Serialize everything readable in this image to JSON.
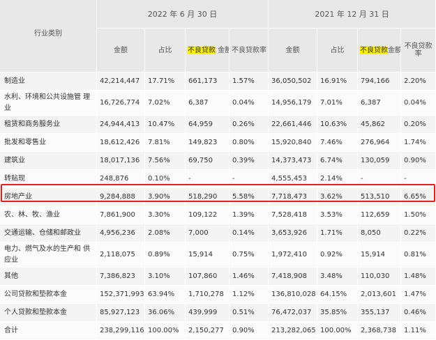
{
  "header": {
    "category_label": "行业类别",
    "period_2022": "2022 年 6 月 30 日",
    "period_2021": "2021 年 12 月 31 日",
    "amount": "金额",
    "share": "占比",
    "npl_hl": "不良贷款",
    "npl_rest": "金额",
    "npl_ratio": "不良贷款率",
    "npl_hl_2021": "不良贷款",
    "npl_rest_2021": "金额",
    "npl_ratio_2021": "不良贷款率"
  },
  "rows": [
    {
      "cat": "制造业",
      "a1": "42,214,447",
      "p1": "17.71%",
      "n1": "661,173",
      "r1": "1.57%",
      "a2": "36,050,502",
      "p2": "16.91%",
      "n2": "794,166",
      "r2": "2.20%"
    },
    {
      "cat": "水利、环境和公共设施管 理业",
      "a1": "16,726,774",
      "p1": "7.02%",
      "n1": "6,387",
      "r1": "0.04%",
      "a2": "14,956,179",
      "p2": "7.01%",
      "n2": "6,387",
      "r2": "0.04%"
    },
    {
      "cat": "租赁和商务服务业",
      "a1": "24,944,413",
      "p1": "10.47%",
      "n1": "64,959",
      "r1": "0.26%",
      "a2": "22,661,446",
      "p2": "10.63%",
      "n2": "45,862",
      "r2": "0.20%"
    },
    {
      "cat": "批发和零售业",
      "a1": "18,612,426",
      "p1": "7.81%",
      "n1": "149,823",
      "r1": "0.80%",
      "a2": "15,920,840",
      "p2": "7.46%",
      "n2": "276,964",
      "r2": "1.74%"
    },
    {
      "cat": "建筑业",
      "a1": "18,017,136",
      "p1": "7.56%",
      "n1": "69,750",
      "r1": "0.39%",
      "a2": "14,373,473",
      "p2": "6.74%",
      "n2": "130,059",
      "r2": "0.90%"
    },
    {
      "cat": "转贴现",
      "a1": "248,876",
      "p1": "0.10%",
      "n1": "-",
      "r1": "-",
      "a2": "4,555,453",
      "p2": "2.14%",
      "n2": "-",
      "r2": "-"
    },
    {
      "cat": "房地产业",
      "a1": "9,284,888",
      "p1": "3.90%",
      "n1": "518,290",
      "r1": "5.58%",
      "a2": "7,718,473",
      "p2": "3.62%",
      "n2": "513,510",
      "r2": "6.65%"
    },
    {
      "cat": "农、林、牧、渔业",
      "a1": "7,861,900",
      "p1": "3.30%",
      "n1": "109,122",
      "r1": "1.39%",
      "a2": "7,528,418",
      "p2": "3.53%",
      "n2": "112,659",
      "r2": "1.50%"
    },
    {
      "cat": "交通运输、仓储和邮政业",
      "a1": "4,956,236",
      "p1": "2.08%",
      "n1": "7,000",
      "r1": "0.14%",
      "a2": "3,653,926",
      "p2": "1.71%",
      "n2": "8,050",
      "r2": "0.22%"
    },
    {
      "cat": "电力、燃气及水的生产和 供应业",
      "a1": "2,118,075",
      "p1": "0.89%",
      "n1": "15,914",
      "r1": "0.75%",
      "a2": "1,972,410",
      "p2": "0.92%",
      "n2": "15,914",
      "r2": "0.81%"
    },
    {
      "cat": "其他",
      "a1": "7,386,823",
      "p1": "3.10%",
      "n1": "107,860",
      "r1": "1.46%",
      "a2": "7,418,908",
      "p2": "3.48%",
      "n2": "110,030",
      "r2": "1.48%"
    },
    {
      "cat": "公司贷款和垫款本金",
      "a1": "152,371,993",
      "p1": "63.94%",
      "n1": "1,710,278",
      "r1": "1.12%",
      "a2": "136,810,028",
      "p2": "64.15%",
      "n2": "2,013,601",
      "r2": "1.47%"
    },
    {
      "cat": "个人贷款和垫款本金",
      "a1": "85,927,123",
      "p1": "36.06%",
      "n1": "439,999",
      "r1": "0.51%",
      "a2": "76,472,037",
      "p2": "35.85%",
      "n2": "355,137",
      "r2": "0.46%"
    },
    {
      "cat": "合计",
      "a1": "238,299,116",
      "p1": "100.00%",
      "n1": "2,150,277",
      "r1": "0.90%",
      "a2": "213,282,065",
      "p2": "100.00%",
      "n2": "2,368,738",
      "r2": "1.11%"
    }
  ]
}
